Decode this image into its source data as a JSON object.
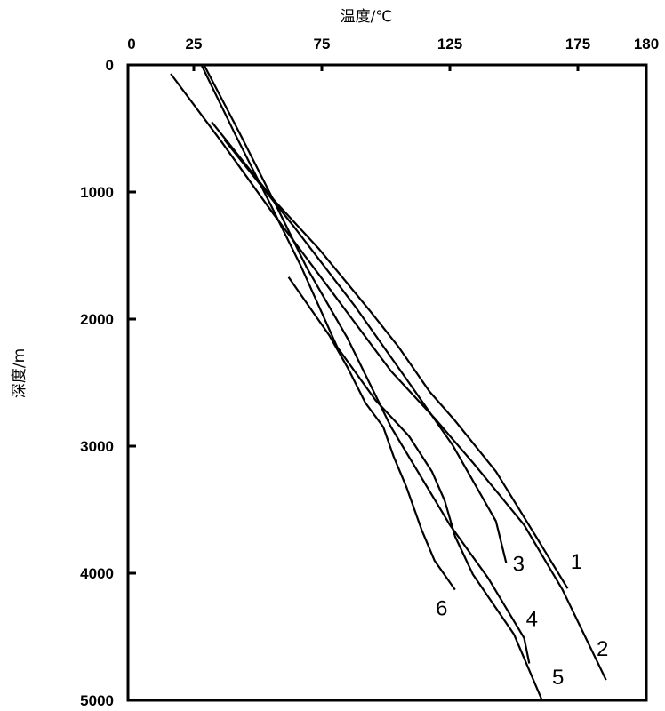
{
  "chart_data": {
    "type": "line",
    "title": "",
    "xlabel": "温度/℃",
    "ylabel": "深度/m",
    "x_axis_position": "top",
    "y_axis_inverted": true,
    "xlim": [
      0,
      202
    ],
    "ylim": [
      0,
      5000
    ],
    "x_ticks": [
      0,
      25,
      75,
      125,
      175,
      180
    ],
    "y_ticks": [
      0,
      1000,
      2000,
      3000,
      4000,
      5000
    ],
    "grid": false,
    "legend": "none",
    "line_color": "#000000",
    "series": [
      {
        "name": "1",
        "points": [
          [
            32,
            450
          ],
          [
            57,
            1080
          ],
          [
            74,
            1450
          ],
          [
            94,
            1940
          ],
          [
            105,
            2220
          ],
          [
            117,
            2570
          ],
          [
            127,
            2800
          ],
          [
            143,
            3200
          ],
          [
            158,
            3690
          ],
          [
            171,
            4120
          ]
        ]
      },
      {
        "name": "2",
        "points": [
          [
            16,
            70
          ],
          [
            36,
            610
          ],
          [
            56,
            1170
          ],
          [
            78,
            1760
          ],
          [
            102,
            2410
          ],
          [
            119,
            2780
          ],
          [
            134,
            3130
          ],
          [
            154,
            3620
          ],
          [
            169,
            4130
          ],
          [
            186,
            4840
          ]
        ]
      },
      {
        "name": "3",
        "points": [
          [
            37,
            590
          ],
          [
            64,
            1270
          ],
          [
            88,
            1900
          ],
          [
            109,
            2500
          ],
          [
            126,
            2990
          ],
          [
            143,
            3590
          ],
          [
            147,
            3920
          ]
        ]
      },
      {
        "name": "4",
        "points": [
          [
            29,
            0
          ],
          [
            43,
            540
          ],
          [
            57,
            1100
          ],
          [
            69,
            1590
          ],
          [
            85,
            2150
          ],
          [
            102,
            2850
          ],
          [
            125,
            3620
          ],
          [
            140,
            4040
          ],
          [
            154,
            4510
          ],
          [
            156,
            4710
          ]
        ]
      },
      {
        "name": "5",
        "points": [
          [
            28,
            0
          ],
          [
            41,
            540
          ],
          [
            55,
            1100
          ],
          [
            67,
            1590
          ],
          [
            81,
            2220
          ],
          [
            96,
            2640
          ],
          [
            109,
            2920
          ],
          [
            118,
            3200
          ],
          [
            123,
            3430
          ],
          [
            127,
            3710
          ],
          [
            134,
            4010
          ],
          [
            150,
            4480
          ],
          [
            161,
            5000
          ]
        ]
      },
      {
        "name": "6",
        "points": [
          [
            62,
            1670
          ],
          [
            78,
            2130
          ],
          [
            85,
            2380
          ],
          [
            92,
            2660
          ],
          [
            99,
            2850
          ],
          [
            103,
            3080
          ],
          [
            108,
            3320
          ],
          [
            114,
            3660
          ],
          [
            119,
            3900
          ],
          [
            127,
            4130
          ]
        ]
      }
    ]
  }
}
